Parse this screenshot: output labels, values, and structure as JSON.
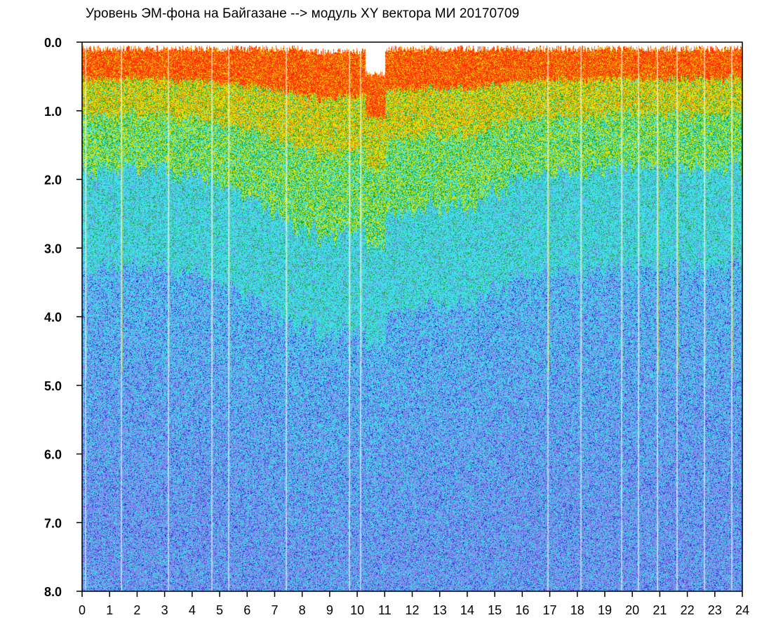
{
  "chart_data": {
    "type": "heatmap",
    "title": "Уровень ЭМ-фона на Байгазане   -->  модуль XY вектора МИ   20170709",
    "xlabel": "",
    "ylabel": "",
    "x_ticks": [
      "0",
      "1",
      "2",
      "3",
      "4",
      "5",
      "6",
      "7",
      "8",
      "9",
      "10",
      "11",
      "12",
      "13",
      "14",
      "15",
      "16",
      "17",
      "18",
      "19",
      "20",
      "21",
      "22",
      "23",
      "24"
    ],
    "y_ticks": [
      "0.0",
      "1.0",
      "2.0",
      "3.0",
      "4.0",
      "5.0",
      "6.0",
      "7.0",
      "8.0"
    ],
    "xlim": [
      0,
      24
    ],
    "ylim": [
      0,
      8
    ],
    "y_inverted": true,
    "grid": false,
    "colormap": [
      "#1f1fd8",
      "#7f7fe8",
      "#3fe0e8",
      "#19a319",
      "#e6e600",
      "#ff8c00",
      "#ff2a00"
    ],
    "background": "#ffffff",
    "frame_color": "#000000"
  }
}
